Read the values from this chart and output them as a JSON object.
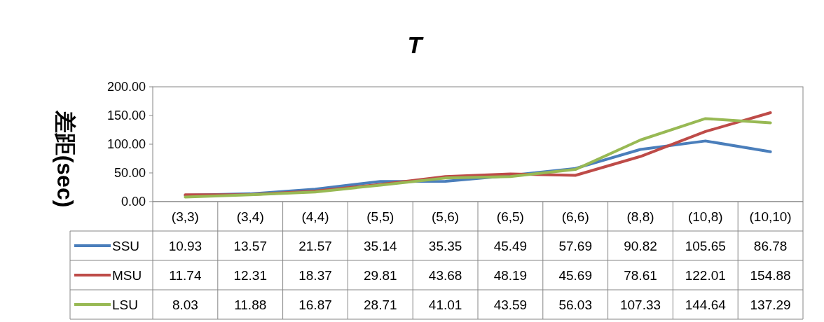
{
  "chart_data": {
    "type": "line",
    "title": "T",
    "ylabel": "差距(sec)",
    "categories": [
      "(3,3)",
      "(3,4)",
      "(4,4)",
      "(5,5)",
      "(5,6)",
      "(6,5)",
      "(6,6)",
      "(8,8)",
      "(10,8)",
      "(10,10)"
    ],
    "series": [
      {
        "name": "SSU",
        "color": "#4a7ebb",
        "values": [
          10.93,
          13.57,
          21.57,
          35.14,
          35.35,
          45.49,
          57.69,
          90.82,
          105.65,
          86.78
        ]
      },
      {
        "name": "MSU",
        "color": "#be4b48",
        "values": [
          11.74,
          12.31,
          18.37,
          29.81,
          43.68,
          48.19,
          45.69,
          78.61,
          122.01,
          154.88
        ]
      },
      {
        "name": "LSU",
        "color": "#98b954",
        "values": [
          8.03,
          11.88,
          16.87,
          28.71,
          41.01,
          43.59,
          56.03,
          107.33,
          144.64,
          137.29
        ]
      }
    ],
    "ylim": [
      0,
      200
    ],
    "yticks": [
      {
        "value": 0,
        "label": "0.00"
      },
      {
        "value": 50,
        "label": "50.00"
      },
      {
        "value": 100,
        "label": "100.00"
      },
      {
        "value": 150,
        "label": "150.00"
      },
      {
        "value": 200,
        "label": "200.00"
      }
    ],
    "data_labels": true,
    "legend": "bottom",
    "marker": "none",
    "line_style": "solid"
  }
}
